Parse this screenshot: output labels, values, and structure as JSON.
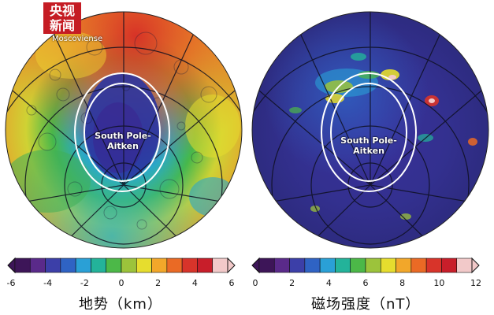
{
  "logo": {
    "line1": "央视",
    "line2": "新闻"
  },
  "left_map": {
    "region_label_line1": "South Pole-",
    "region_label_line2": "Aitken",
    "crater_label": "Moscoviense"
  },
  "right_map": {
    "region_label_line1": "South Pole-",
    "region_label_line2": "Aitken"
  },
  "colorbars": {
    "left": {
      "title": "地势（km）",
      "ticks": [
        "-6",
        "-4",
        "-2",
        "0",
        "2",
        "4",
        "6"
      ],
      "colors": [
        "#3d1558",
        "#5a2a8a",
        "#3c3fa8",
        "#2f63c4",
        "#2aa0d6",
        "#23b39a",
        "#4cb848",
        "#9cc33b",
        "#e6dd2e",
        "#f2a72a",
        "#ea6a25",
        "#d8342a",
        "#c81e2a",
        "#f2c9c9"
      ]
    },
    "right": {
      "title": "磁场强度（nT）",
      "ticks": [
        "0",
        "2",
        "4",
        "6",
        "8",
        "10",
        "12"
      ],
      "colors": [
        "#3d1558",
        "#5a2a8a",
        "#3c3fa8",
        "#2f63c4",
        "#2aa0d6",
        "#23b39a",
        "#4cb848",
        "#9cc33b",
        "#e6dd2e",
        "#f2a72a",
        "#ea6a25",
        "#d8342a",
        "#c81e2a",
        "#f2c9c9"
      ]
    }
  }
}
